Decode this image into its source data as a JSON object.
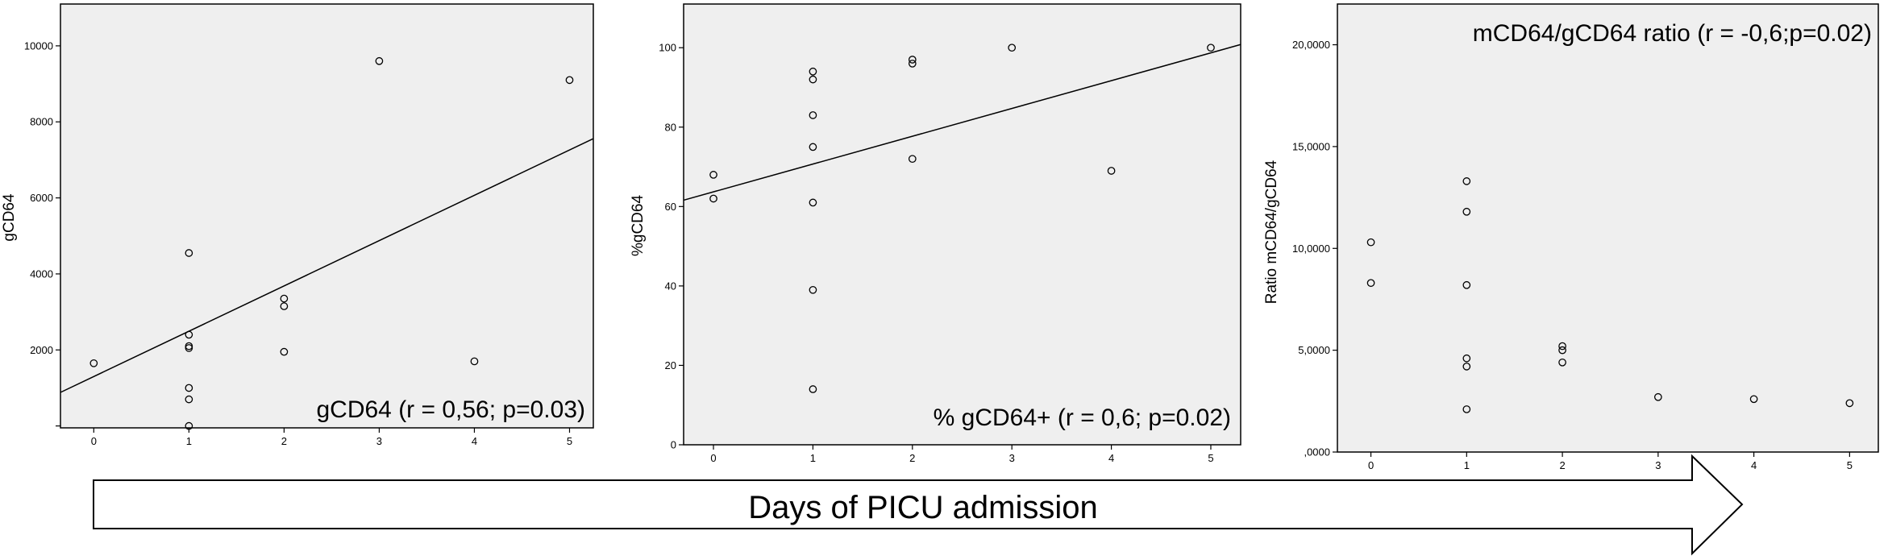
{
  "arrow": {
    "label": "Days of PICU admission"
  },
  "chart_data": [
    {
      "type": "scatter",
      "annotation": "gCD64 (r = 0,56; p=0.03)",
      "ylabel": "gCD64",
      "xlabel": "",
      "xlim": [
        -0.35,
        5.25
      ],
      "ylim": [
        -50,
        11100
      ],
      "xticks": [
        0,
        1,
        2,
        3,
        4,
        5
      ],
      "xtick_labels": [
        "0",
        "1",
        "2",
        "3",
        "4",
        "5"
      ],
      "yticks": [
        0,
        2000,
        4000,
        6000,
        8000,
        10000
      ],
      "ytick_labels": [
        "",
        "2000",
        "4000",
        "6000",
        "8000",
        "10000"
      ],
      "points": [
        {
          "x": 0,
          "y": 1650
        },
        {
          "x": 1,
          "y": 4550
        },
        {
          "x": 1,
          "y": 2400
        },
        {
          "x": 1,
          "y": 2100
        },
        {
          "x": 1,
          "y": 2050
        },
        {
          "x": 1,
          "y": 1000
        },
        {
          "x": 1,
          "y": 700
        },
        {
          "x": 1,
          "y": 0
        },
        {
          "x": 2,
          "y": 3350
        },
        {
          "x": 2,
          "y": 3150
        },
        {
          "x": 2,
          "y": 1950
        },
        {
          "x": 3,
          "y": 9600
        },
        {
          "x": 4,
          "y": 1700
        },
        {
          "x": 5,
          "y": 9100
        }
      ],
      "fit_line": {
        "intercept": 1300,
        "slope": 1192
      },
      "grid": false
    },
    {
      "type": "scatter",
      "annotation": "% gCD64+ (r = 0,6; p=0.02)",
      "ylabel": "%gCD64",
      "xlabel": "",
      "xlim": [
        -0.3,
        5.3
      ],
      "ylim": [
        0,
        111
      ],
      "xticks": [
        0,
        1,
        2,
        3,
        4,
        5
      ],
      "xtick_labels": [
        "0",
        "1",
        "2",
        "3",
        "4",
        "5"
      ],
      "yticks": [
        0,
        20,
        40,
        60,
        80,
        100
      ],
      "ytick_labels": [
        "0",
        "20",
        "40",
        "60",
        "80",
        "100"
      ],
      "points": [
        {
          "x": 0,
          "y": 68
        },
        {
          "x": 0,
          "y": 62
        },
        {
          "x": 1,
          "y": 94
        },
        {
          "x": 1,
          "y": 92
        },
        {
          "x": 1,
          "y": 83
        },
        {
          "x": 1,
          "y": 75
        },
        {
          "x": 1,
          "y": 61
        },
        {
          "x": 1,
          "y": 39
        },
        {
          "x": 1,
          "y": 14
        },
        {
          "x": 2,
          "y": 97
        },
        {
          "x": 2,
          "y": 96
        },
        {
          "x": 2,
          "y": 72
        },
        {
          "x": 3,
          "y": 100
        },
        {
          "x": 4,
          "y": 69
        },
        {
          "x": 5,
          "y": 100
        }
      ],
      "fit_line": {
        "intercept": 63.7,
        "slope": 7.0
      },
      "grid": false
    },
    {
      "type": "scatter",
      "annotation": "mCD64/gCD64 ratio (r = -0,6;p=0.02)",
      "ylabel": "Ratio mCD64/gCD64",
      "xlabel": "",
      "xlim": [
        -0.35,
        5.3
      ],
      "ylim": [
        0,
        22000
      ],
      "xticks": [
        0,
        1,
        2,
        3,
        4,
        5
      ],
      "xtick_labels": [
        "0",
        "1",
        "2",
        "3",
        "4",
        "5"
      ],
      "yticks": [
        0,
        5000,
        10000,
        15000,
        20000
      ],
      "ytick_labels": [
        ",0000",
        "5,0000",
        "10,0000",
        "15,0000",
        "20,0000"
      ],
      "points": [
        {
          "x": 0,
          "y": 10300
        },
        {
          "x": 0,
          "y": 8300
        },
        {
          "x": 1,
          "y": 13300
        },
        {
          "x": 1,
          "y": 11800
        },
        {
          "x": 1,
          "y": 8200
        },
        {
          "x": 1,
          "y": 4600
        },
        {
          "x": 1,
          "y": 4200
        },
        {
          "x": 1,
          "y": 2100
        },
        {
          "x": 2,
          "y": 5200
        },
        {
          "x": 2,
          "y": 5000
        },
        {
          "x": 2,
          "y": 4400
        },
        {
          "x": 3,
          "y": 2700
        },
        {
          "x": 4,
          "y": 2600
        },
        {
          "x": 5,
          "y": 2400
        }
      ],
      "fit_line": null,
      "grid": false
    }
  ]
}
